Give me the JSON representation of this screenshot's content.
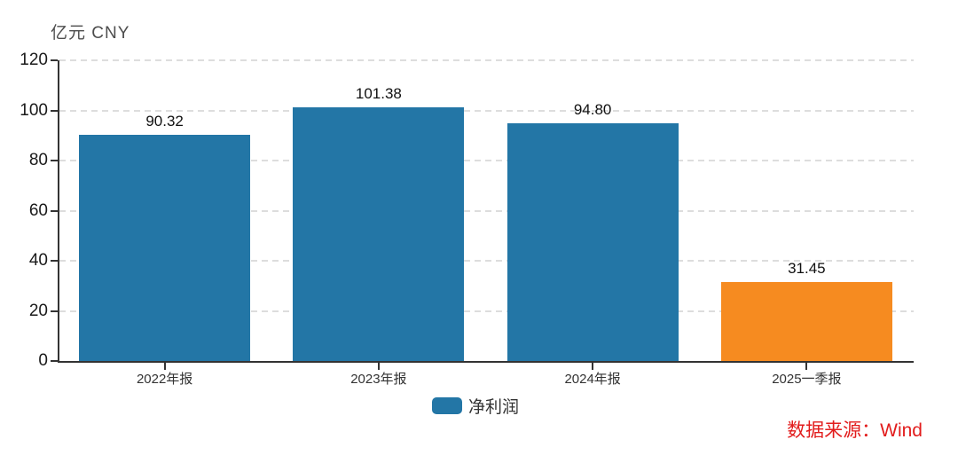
{
  "chart_data": {
    "type": "bar",
    "title": "",
    "categories": [
      "2022年报",
      "2023年报",
      "2024年报",
      "2025一季报"
    ],
    "values": [
      90.32,
      101.38,
      94.8,
      31.45
    ],
    "value_labels": [
      "90.32",
      "101.38",
      "94.80",
      "31.45"
    ],
    "bar_colors": [
      "#2376a6",
      "#2376a6",
      "#2376a6",
      "#f68b20"
    ],
    "series": [
      {
        "name": "净利润",
        "values": [
          90.32,
          101.38,
          94.8,
          31.45
        ]
      }
    ],
    "ylabel": "亿元 CNY",
    "xlabel": "",
    "ylim": [
      0,
      120
    ],
    "yticks": [
      0,
      20,
      40,
      60,
      80,
      100,
      120
    ],
    "grid": "horizontal-dashed",
    "legend": [
      {
        "label": "净利润",
        "color": "#2376a6"
      }
    ],
    "legend_position": "bottom-center",
    "source": "数据来源：Wind"
  },
  "colors": {
    "axis": "#333333",
    "grid": "#dddddd",
    "tick_label": "#1a1a1a",
    "value_label": "#111111",
    "source_red": "#e21c1c"
  }
}
